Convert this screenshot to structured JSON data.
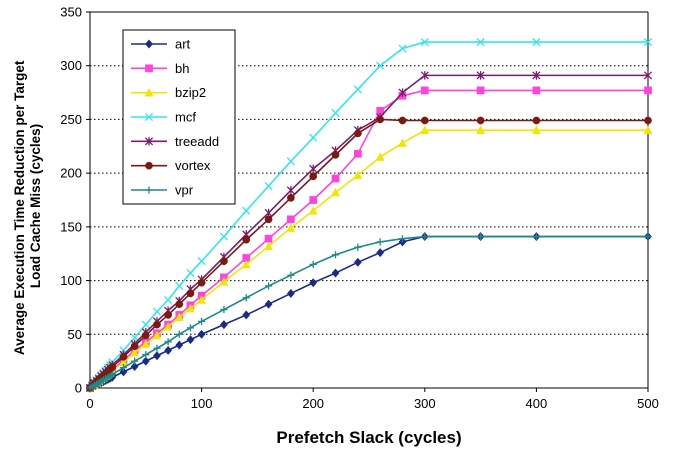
{
  "chart_data": {
    "type": "line",
    "xlabel": "Prefetch Slack (cycles)",
    "ylabel": [
      "Average Execution Time Reduction per Target",
      "Load Cache Miss (cycles)"
    ],
    "xlim": [
      0,
      500
    ],
    "ylim": [
      0,
      350
    ],
    "xticks": [
      0,
      100,
      200,
      300,
      400,
      500
    ],
    "yticks": [
      0,
      50,
      100,
      150,
      200,
      250,
      300,
      350
    ],
    "grid": "horizontal dotted",
    "legend_position": "top-left",
    "x": [
      0,
      2,
      4,
      6,
      8,
      10,
      12,
      14,
      16,
      18,
      20,
      30,
      40,
      50,
      60,
      70,
      80,
      90,
      100,
      120,
      140,
      160,
      180,
      200,
      220,
      240,
      260,
      280,
      300,
      350,
      400,
      500
    ],
    "series": [
      {
        "name": "art",
        "color": "#1a2a8a",
        "marker": "diamond",
        "values": [
          0,
          1,
          2,
          3,
          4,
          5,
          6,
          7,
          8,
          9,
          10,
          15,
          20,
          25,
          30,
          35,
          40,
          45,
          50,
          59,
          68,
          78,
          88,
          98,
          107,
          117,
          126,
          136,
          141,
          141,
          141,
          141
        ]
      },
      {
        "name": "bh",
        "color": "#ff44dd",
        "marker": "square",
        "values": [
          0,
          2,
          4,
          5.5,
          7,
          8.5,
          10,
          12,
          14,
          15.5,
          17,
          26,
          35,
          43,
          51,
          59,
          68,
          77,
          86,
          103,
          121,
          139,
          157,
          175,
          195,
          218,
          258,
          272,
          277,
          277,
          277,
          277
        ]
      },
      {
        "name": "bzip2",
        "color": "#f2e600",
        "marker": "triangle",
        "values": [
          0,
          1.5,
          3,
          5,
          6.5,
          8,
          9.5,
          11,
          12.5,
          14,
          16,
          24,
          33,
          41,
          49,
          57,
          66,
          74,
          82,
          99,
          115,
          132,
          149,
          165,
          182,
          198,
          215,
          228,
          240,
          240,
          240,
          240
        ]
      },
      {
        "name": "mcf",
        "color": "#33e6ee",
        "marker": "x",
        "values": [
          0,
          2.5,
          5,
          7,
          9.5,
          12,
          14,
          16.5,
          19,
          21,
          24,
          35,
          47,
          59,
          71,
          82,
          95,
          107,
          118,
          141,
          165,
          188,
          211,
          233,
          256,
          278,
          300,
          316,
          322,
          322,
          322,
          322
        ]
      },
      {
        "name": "treeadd",
        "color": "#7a1c6e",
        "marker": "star",
        "values": [
          0,
          2,
          4.5,
          6.5,
          8.5,
          11,
          13,
          15,
          17,
          19,
          21.5,
          31,
          41,
          52,
          62,
          72,
          81,
          92,
          101,
          122,
          143,
          163,
          184,
          204,
          221,
          240,
          252,
          275,
          291,
          291,
          291,
          291
        ]
      },
      {
        "name": "vortex",
        "color": "#7a1a10",
        "marker": "circle",
        "values": [
          0,
          2,
          4,
          6,
          8,
          10,
          11.5,
          13.5,
          15.5,
          17.5,
          19.5,
          29,
          39,
          49,
          59,
          68,
          78,
          88,
          98,
          118,
          138,
          157,
          177,
          197,
          217,
          237,
          250,
          249,
          249,
          249,
          249,
          249
        ]
      },
      {
        "name": "vpr",
        "color": "#1a8a8a",
        "marker": "plus",
        "values": [
          0,
          1.2,
          2.5,
          3.7,
          5,
          6.2,
          7.5,
          8.7,
          10,
          11,
          12.5,
          19,
          25,
          31,
          37,
          43,
          50,
          56,
          62,
          73,
          84,
          95,
          105,
          115,
          124,
          131,
          136,
          139,
          141,
          141,
          141,
          141
        ]
      }
    ]
  }
}
